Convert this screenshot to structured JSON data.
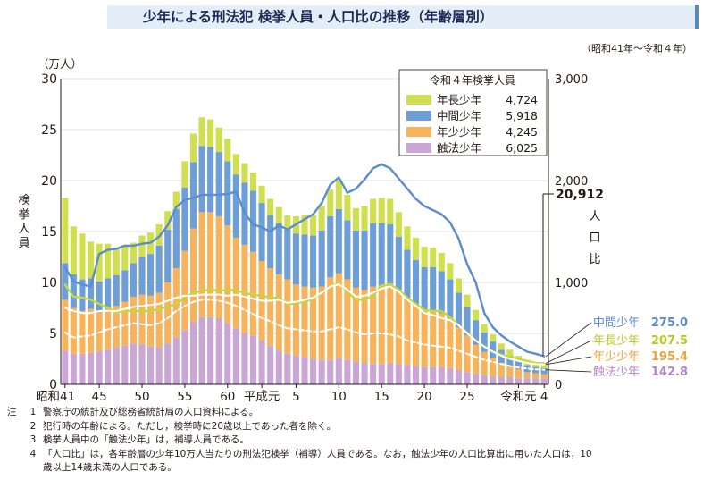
{
  "title": "少年による刑法犯 検挙人員・人口比の推移（年齢層別）",
  "period": "（昭和41年～令和４年）",
  "chart_data": {
    "type": "bar",
    "stacked": true,
    "unit_left": "（万人）",
    "ylabel_left": "検挙人員",
    "ylabel_right": "人口比",
    "ylim_left": [
      0,
      30
    ],
    "ylim_right": [
      0,
      3000
    ],
    "yticks_left": [
      "0",
      "5",
      "10",
      "15",
      "20",
      "25",
      "30"
    ],
    "yticks_right": [
      "0",
      "1,000",
      "2,000",
      "3,000"
    ],
    "xticks": [
      {
        "i": 0,
        "label": "昭和41"
      },
      {
        "i": 4,
        "label": "45"
      },
      {
        "i": 9,
        "label": "50"
      },
      {
        "i": 14,
        "label": "55"
      },
      {
        "i": 19,
        "label": "60"
      },
      {
        "i": 23,
        "label": "平成元"
      },
      {
        "i": 27,
        "label": "5"
      },
      {
        "i": 32,
        "label": "10"
      },
      {
        "i": 37,
        "label": "15"
      },
      {
        "i": 42,
        "label": "20"
      },
      {
        "i": 47,
        "label": "25"
      },
      {
        "i": 53,
        "label": "令和元"
      },
      {
        "i": 56,
        "label": "4"
      }
    ],
    "years": [
      "S41",
      "S42",
      "S43",
      "S44",
      "S45",
      "S46",
      "S47",
      "S48",
      "S49",
      "S50",
      "S51",
      "S52",
      "S53",
      "S54",
      "S55",
      "S56",
      "S57",
      "S58",
      "S59",
      "S60",
      "S61",
      "S62",
      "S63",
      "H1",
      "H2",
      "H3",
      "H4",
      "H5",
      "H6",
      "H7",
      "H8",
      "H9",
      "H10",
      "H11",
      "H12",
      "H13",
      "H14",
      "H15",
      "H16",
      "H17",
      "H18",
      "H19",
      "H20",
      "H21",
      "H22",
      "H23",
      "H24",
      "H25",
      "H26",
      "H27",
      "H28",
      "H29",
      "H30",
      "R1",
      "R2",
      "R3",
      "R4"
    ],
    "bar_series": [
      {
        "name": "触法少年",
        "color": "#c9a6d6",
        "values": [
          3.3,
          3.0,
          3.0,
          3.1,
          3.2,
          3.4,
          3.6,
          3.8,
          4.0,
          3.9,
          3.7,
          3.6,
          4.0,
          4.6,
          5.3,
          6.1,
          6.6,
          6.6,
          6.5,
          6.0,
          5.5,
          5.0,
          4.8,
          4.3,
          3.8,
          3.3,
          3.0,
          2.8,
          2.7,
          2.5,
          2.4,
          2.4,
          2.6,
          2.4,
          2.2,
          2.1,
          2.0,
          2.0,
          2.1,
          2.0,
          1.9,
          1.8,
          1.7,
          1.7,
          1.7,
          1.6,
          1.4,
          1.2,
          1.0,
          0.9,
          0.8,
          0.7,
          0.7,
          0.6,
          0.6,
          0.6,
          0.6
        ]
      },
      {
        "name": "年少少年",
        "color": "#f6b35c",
        "values": [
          5.0,
          4.5,
          4.2,
          4.3,
          4.0,
          4.0,
          4.1,
          4.3,
          4.6,
          4.9,
          5.0,
          5.4,
          6.0,
          6.8,
          7.8,
          9.2,
          10.3,
          10.3,
          10.0,
          9.6,
          8.9,
          8.7,
          8.2,
          7.8,
          7.6,
          7.5,
          7.3,
          7.0,
          6.9,
          7.0,
          7.2,
          8.1,
          8.3,
          7.9,
          7.3,
          7.2,
          7.6,
          7.7,
          7.8,
          7.3,
          6.6,
          6.0,
          5.6,
          5.5,
          5.3,
          4.9,
          4.2,
          3.6,
          2.9,
          2.3,
          1.8,
          1.4,
          1.1,
          0.9,
          0.6,
          0.5,
          0.4
        ]
      },
      {
        "name": "中間少年",
        "color": "#6e9ed6",
        "values": [
          3.6,
          3.3,
          3.1,
          3.0,
          2.9,
          3.0,
          3.0,
          3.1,
          3.3,
          3.7,
          4.1,
          4.6,
          5.2,
          5.8,
          6.2,
          6.5,
          6.5,
          6.4,
          6.3,
          6.3,
          6.2,
          6.1,
          6.0,
          5.7,
          5.2,
          5.0,
          4.9,
          5.0,
          5.1,
          5.1,
          5.5,
          6.0,
          6.3,
          5.8,
          5.6,
          5.8,
          6.2,
          6.1,
          5.8,
          5.2,
          4.7,
          4.4,
          4.2,
          4.3,
          4.1,
          3.8,
          3.4,
          2.8,
          2.4,
          1.9,
          1.6,
          1.3,
          1.0,
          0.8,
          0.7,
          0.6,
          0.6
        ]
      },
      {
        "name": "年長少年",
        "color": "#cfdf4f",
        "values": [
          6.4,
          4.7,
          4.5,
          3.6,
          3.7,
          3.4,
          2.7,
          2.5,
          2.0,
          2.1,
          2.1,
          2.1,
          1.8,
          1.7,
          2.6,
          2.8,
          2.8,
          2.7,
          2.4,
          2.2,
          2.0,
          1.9,
          1.8,
          1.7,
          1.6,
          1.6,
          1.4,
          1.7,
          1.9,
          2.0,
          2.4,
          2.6,
          2.8,
          2.5,
          2.2,
          2.4,
          2.4,
          2.5,
          2.5,
          2.4,
          2.3,
          2.2,
          2.0,
          1.9,
          1.8,
          1.6,
          1.4,
          1.2,
          1.0,
          0.8,
          0.7,
          0.6,
          0.6,
          0.5,
          0.5,
          0.5,
          0.5
        ]
      }
    ],
    "line_series": [
      {
        "name": "中間少年",
        "color": "#5b8ccc",
        "width": 2.4,
        "dash": "",
        "values": [
          1150,
          1010,
          980,
          960,
          1280,
          1320,
          1330,
          1360,
          1360,
          1380,
          1390,
          1450,
          1560,
          1740,
          1810,
          1830,
          1860,
          1860,
          1860,
          1870,
          1890,
          1680,
          1570,
          1540,
          1500,
          1560,
          1520,
          1570,
          1620,
          1670,
          1780,
          1960,
          2030,
          1880,
          1920,
          2010,
          2120,
          2160,
          2120,
          2020,
          1920,
          1820,
          1750,
          1710,
          1670,
          1590,
          1430,
          1180,
          1000,
          700,
          560,
          480,
          420,
          370,
          320,
          300,
          275.0
        ]
      },
      {
        "name": "年長少年",
        "color": "#c2d93a",
        "width": 2.4,
        "dash": "",
        "values": [
          980,
          860,
          850,
          830,
          790,
          750,
          710,
          720,
          720,
          720,
          720,
          740,
          760,
          790,
          850,
          900,
          920,
          930,
          920,
          930,
          920,
          900,
          880,
          870,
          850,
          850,
          780,
          800,
          810,
          840,
          900,
          960,
          990,
          910,
          830,
          830,
          870,
          970,
          980,
          930,
          850,
          790,
          730,
          720,
          720,
          660,
          580,
          510,
          430,
          370,
          320,
          290,
          270,
          250,
          230,
          210,
          207.5
        ]
      },
      {
        "name": "年少少年",
        "color": "#ffffff",
        "width": 2.0,
        "dash": "",
        "values": [
          750,
          720,
          700,
          700,
          720,
          720,
          720,
          740,
          760,
          770,
          780,
          790,
          820,
          850,
          870,
          870,
          880,
          880,
          880,
          870,
          880,
          860,
          840,
          820,
          820,
          830,
          800,
          810,
          830,
          850,
          900,
          960,
          980,
          930,
          860,
          870,
          900,
          940,
          960,
          910,
          830,
          770,
          700,
          680,
          650,
          630,
          580,
          500,
          430,
          370,
          320,
          280,
          250,
          230,
          210,
          200,
          195.4
        ]
      },
      {
        "name": "触法少年",
        "color": "#ffffff",
        "width": 2.0,
        "dash": "5,3",
        "values": [
          510,
          460,
          470,
          480,
          510,
          540,
          560,
          580,
          600,
          590,
          580,
          600,
          650,
          720,
          770,
          810,
          830,
          830,
          820,
          800,
          770,
          730,
          690,
          650,
          620,
          580,
          550,
          540,
          530,
          520,
          520,
          540,
          560,
          540,
          510,
          490,
          500,
          500,
          490,
          470,
          430,
          410,
          390,
          380,
          370,
          360,
          330,
          300,
          270,
          240,
          220,
          200,
          180,
          165,
          155,
          148,
          142.8
        ]
      }
    ],
    "legend": {
      "title": "令和４年検挙人員",
      "placement": "top-right",
      "items": [
        {
          "label": "年長少年",
          "value": "4,724",
          "color": "#cfdf4f"
        },
        {
          "label": "中間少年",
          "value": "5,918",
          "color": "#6e9ed6"
        },
        {
          "label": "年少少年",
          "value": "4,245",
          "color": "#f6b35c"
        },
        {
          "label": "触法少年",
          "value": "6,025",
          "color": "#c9a6d6"
        }
      ]
    },
    "total_ratio_label": "20,912",
    "total_ratio_unit": "人口比",
    "end_labels": [
      {
        "label": "中間少年",
        "value": "275.0",
        "color": "#5b8ccc"
      },
      {
        "label": "年長少年",
        "value": "207.5",
        "color": "#b6cc1f"
      },
      {
        "label": "年少少年",
        "value": "195.4",
        "color": "#f0a13a"
      },
      {
        "label": "触法少年",
        "value": "142.8",
        "color": "#b085c8"
      }
    ]
  },
  "notes": {
    "mark": "注",
    "items": [
      {
        "num": "1",
        "text": "警察庁の統計及び総務省統計局の人口資料による。"
      },
      {
        "num": "2",
        "text": "犯行時の年齢による。ただし，検挙時に20歳以上であった者を除く。"
      },
      {
        "num": "3",
        "text": "検挙人員中の「触法少年」は，補導人員である。"
      },
      {
        "num": "4",
        "text": "「人口比」は，各年齢層の少年10万人当たりの刑法犯検挙（補導）人員である。なお，触法少年の人口比算出に用いた人口は，10"
      }
    ],
    "continuation": "歳以上14歳未満の人口である。"
  }
}
